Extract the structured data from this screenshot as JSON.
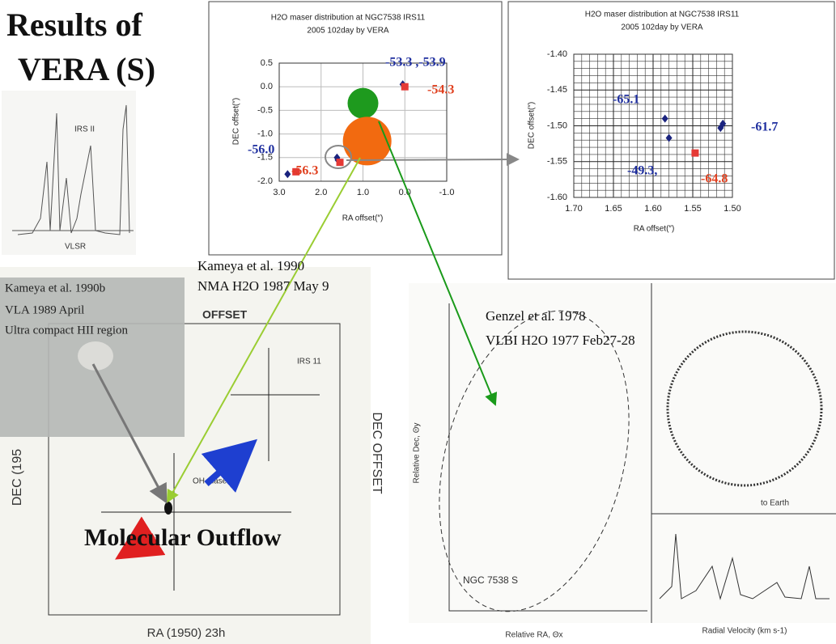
{
  "slide": {
    "title_line1": "Results of",
    "title_line2": "VERA (S)",
    "outflow": "Molecular Outflow"
  },
  "references": {
    "kameya_nma": "Kameya et al. 1990",
    "kameya_nma_obs": "NMA   H2O   1987 May 9",
    "kameya_vla": "Kameya et al. 1990b",
    "kameya_vla_obs": "VLA   1989 April",
    "kameya_vla_note": "Ultra compact HII region",
    "genzel": "Genzel et al. 1978",
    "genzel_obs": "VLBI H2O   1977 Feb27-28"
  },
  "scans": {
    "spectrum_source": "IRS II",
    "spectrum_axis": "VLSR",
    "nma_source": "IRS 11",
    "nma_oh": "OH maser",
    "nma_y_axis": "DEC OFFSET",
    "nma_y_axis_left": "DEC (195",
    "nma_x_axis": "RA (1950) 23h",
    "nma_offset": "OFFSET",
    "vlbi_source": "NGC 7538 S",
    "vlbi_x_axis": "Relative RA, Θx",
    "vlbi_y_axis": "Relative Dec, Θy",
    "vlbi_spec_axis": "Radial Velocity (km s-1)",
    "vlbi_earth": "to Earth"
  },
  "chart_data": [
    {
      "type": "scatter",
      "title": "H2O maser distribution at NGC7538 IRS11",
      "subtitle": "2005 102day by VERA",
      "x_label": "RA offset(″)",
      "y_label": "DEC offset(″)",
      "xlim": [
        3.0,
        -1.0
      ],
      "xticks": [
        {
          "value": 3,
          "label": "3.0"
        },
        {
          "value": 2,
          "label": "2.0"
        },
        {
          "value": 1,
          "label": "1.0"
        },
        {
          "value": 0,
          "label": "0.0"
        },
        {
          "value": -1,
          "label": "-1.0"
        }
      ],
      "ylim": [
        -2.0,
        0.5
      ],
      "yticks": [
        0.5,
        {
          "value": 0,
          "label": "0.0"
        },
        -0.5,
        {
          "value": -1,
          "label": "-1.0"
        },
        -1.5,
        {
          "value": -2,
          "label": "-2.0"
        }
      ],
      "grid": true,
      "series": [
        {
          "color": "#1a237e",
          "marker": "diamond",
          "x": [
            0.05,
            1.6,
            1.62,
            2.8
          ],
          "values": [
            0.05,
            -1.55,
            -1.5,
            -1.85
          ]
        },
        {
          "color": "#e53935",
          "marker": "square",
          "x": [
            0.0,
            1.55,
            2.6
          ],
          "values": [
            0.0,
            -1.6,
            -1.8
          ]
        },
        {
          "color": "#1e9a1e",
          "marker": "circle-medium",
          "x": [
            1.0
          ],
          "values": [
            -0.35
          ]
        },
        {
          "color": "#f26a10",
          "marker": "circle-large",
          "x": [
            0.9
          ],
          "values": [
            -1.15
          ]
        }
      ],
      "annotations": [
        {
          "text": "-53.3 ,-53.9",
          "color": "#1f2f9f"
        },
        {
          "text": "-54.3",
          "color": "#e0401f"
        },
        {
          "text": "-56.0",
          "color": "#1f2f9f"
        },
        {
          "text": "-56.3",
          "color": "#e0401f"
        }
      ]
    },
    {
      "type": "scatter",
      "title": "H2O maser distribution at NGC7538 IRS11",
      "subtitle": "2005 102day by VERA",
      "x_label": "RA offset(″)",
      "y_label": "DEC offset(″)",
      "xlim": [
        1.7,
        1.5
      ],
      "xticks": [
        {
          "value": 1.7,
          "label": "1.70"
        },
        1.65,
        {
          "value": 1.6,
          "label": "1.60"
        },
        1.55,
        {
          "value": 1.5,
          "label": "1.50"
        }
      ],
      "ylim": [
        -1.6,
        -1.4
      ],
      "yticks": [
        {
          "value": -1.4,
          "label": "-1.40"
        },
        -1.45,
        {
          "value": -1.5,
          "label": "-1.50"
        },
        -1.55,
        {
          "value": -1.6,
          "label": "-1.60"
        }
      ],
      "grid": true,
      "series": [
        {
          "color": "#1a237e",
          "marker": "diamond",
          "x": [
            1.585,
            1.58,
            1.515,
            1.512
          ],
          "values": [
            -1.49,
            -1.517,
            -1.503,
            -1.497
          ]
        },
        {
          "color": "#e53935",
          "marker": "square",
          "x": [
            1.547
          ],
          "values": [
            -1.538
          ]
        }
      ],
      "annotations": [
        {
          "text": "-65.1",
          "color": "#1f2f9f"
        },
        {
          "text": "-61.7",
          "color": "#1f2f9f"
        },
        {
          "text": "-49.3,",
          "color": "#1f2f9f"
        },
        {
          "text": "-64.8",
          "color": "#e0401f"
        }
      ]
    }
  ]
}
